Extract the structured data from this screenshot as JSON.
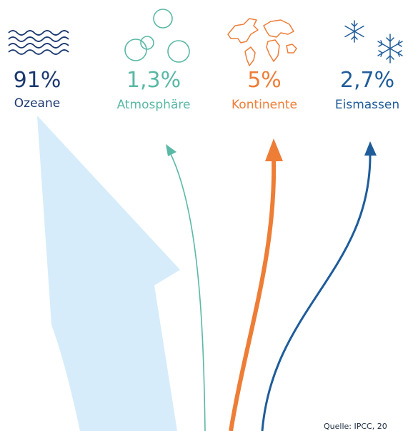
{
  "categories": [
    {
      "id": "ozeane",
      "percent": "91%",
      "label": "Ozeane",
      "share": 91,
      "color": "#1b3870",
      "icon": "waves-icon"
    },
    {
      "id": "atmosphaere",
      "percent": "1,3%",
      "label": "Atmosphäre",
      "share": 1.3,
      "color": "#5ab8a6",
      "icon": "bubbles-icon"
    },
    {
      "id": "kontinente",
      "percent": "5%",
      "label": "Kontinente",
      "share": 5,
      "color": "#ee7d36",
      "icon": "world-map-icon"
    },
    {
      "id": "eismassen",
      "percent": "2,7%",
      "label": "Eismassen",
      "share": 2.7,
      "color": "#1f5c9a",
      "icon": "snowflake-icon"
    }
  ],
  "colors": {
    "ocean_arrow": "#d6ecfa",
    "source_text": "#1b2c3f"
  },
  "source": "Quelle: IPCC, 20"
}
